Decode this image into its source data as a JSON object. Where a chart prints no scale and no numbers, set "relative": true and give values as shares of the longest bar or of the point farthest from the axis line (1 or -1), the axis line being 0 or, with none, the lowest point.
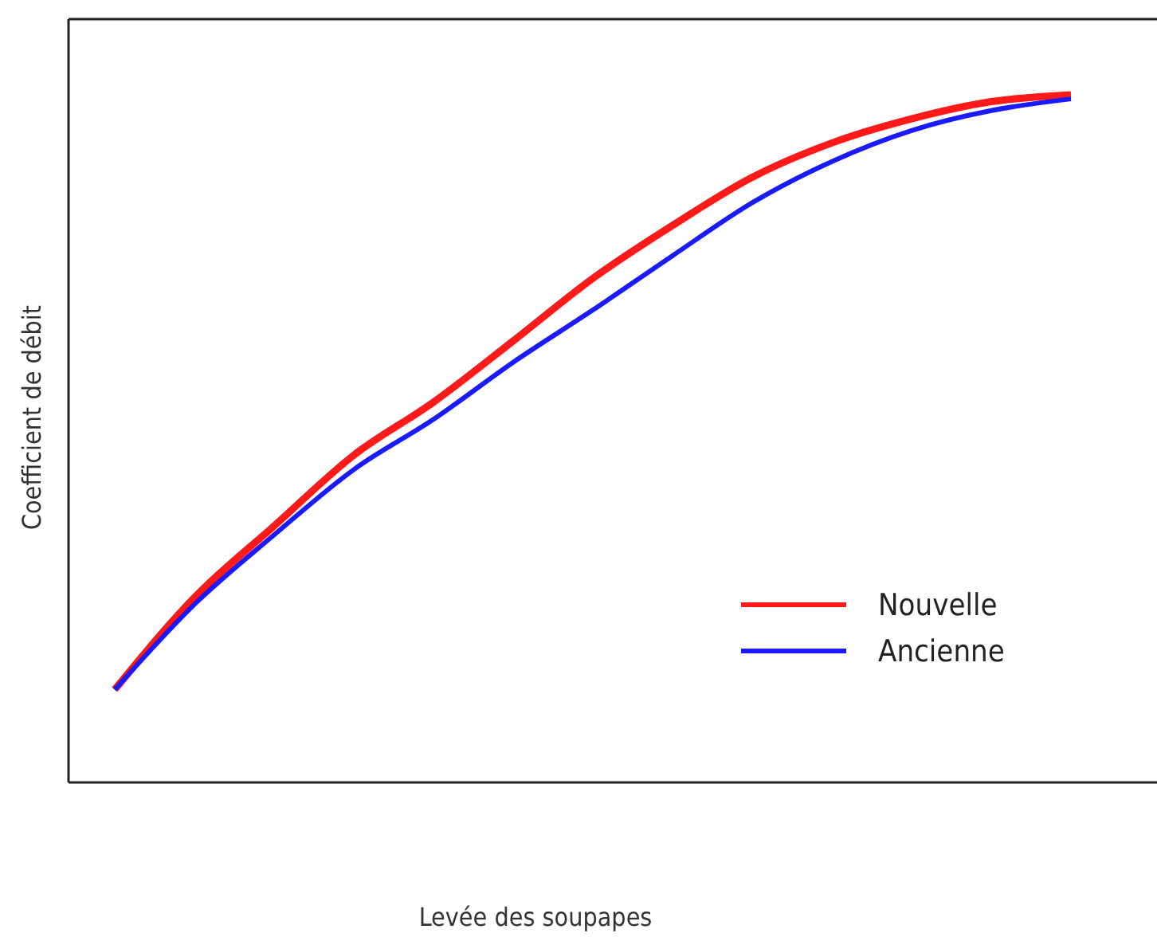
{
  "chart_data": {
    "type": "line",
    "relative": true,
    "xlabel": "Levée des soupapes",
    "ylabel": "Coefficient de débit",
    "legend": "right",
    "marker": "none",
    "grid": false,
    "categories": [
      null,
      null,
      null,
      null,
      null,
      null,
      null,
      null,
      null,
      null,
      null,
      null,
      null
    ],
    "series": [
      {
        "name": "Nouvelle",
        "color": "#ff1a1a",
        "values": [
          0.135,
          0.269,
          0.373,
          0.476,
          0.553,
          0.642,
          0.733,
          0.81,
          0.88,
          0.93,
          0.965,
          0.99,
          1
        ]
      },
      {
        "name": "Ancienne",
        "color": "#1a1aff",
        "values": [
          0.135,
          0.259,
          0.36,
          0.455,
          0.528,
          0.611,
          0.687,
          0.766,
          0.843,
          0.903,
          0.948,
          0.977,
          0.994
        ]
      }
    ]
  }
}
